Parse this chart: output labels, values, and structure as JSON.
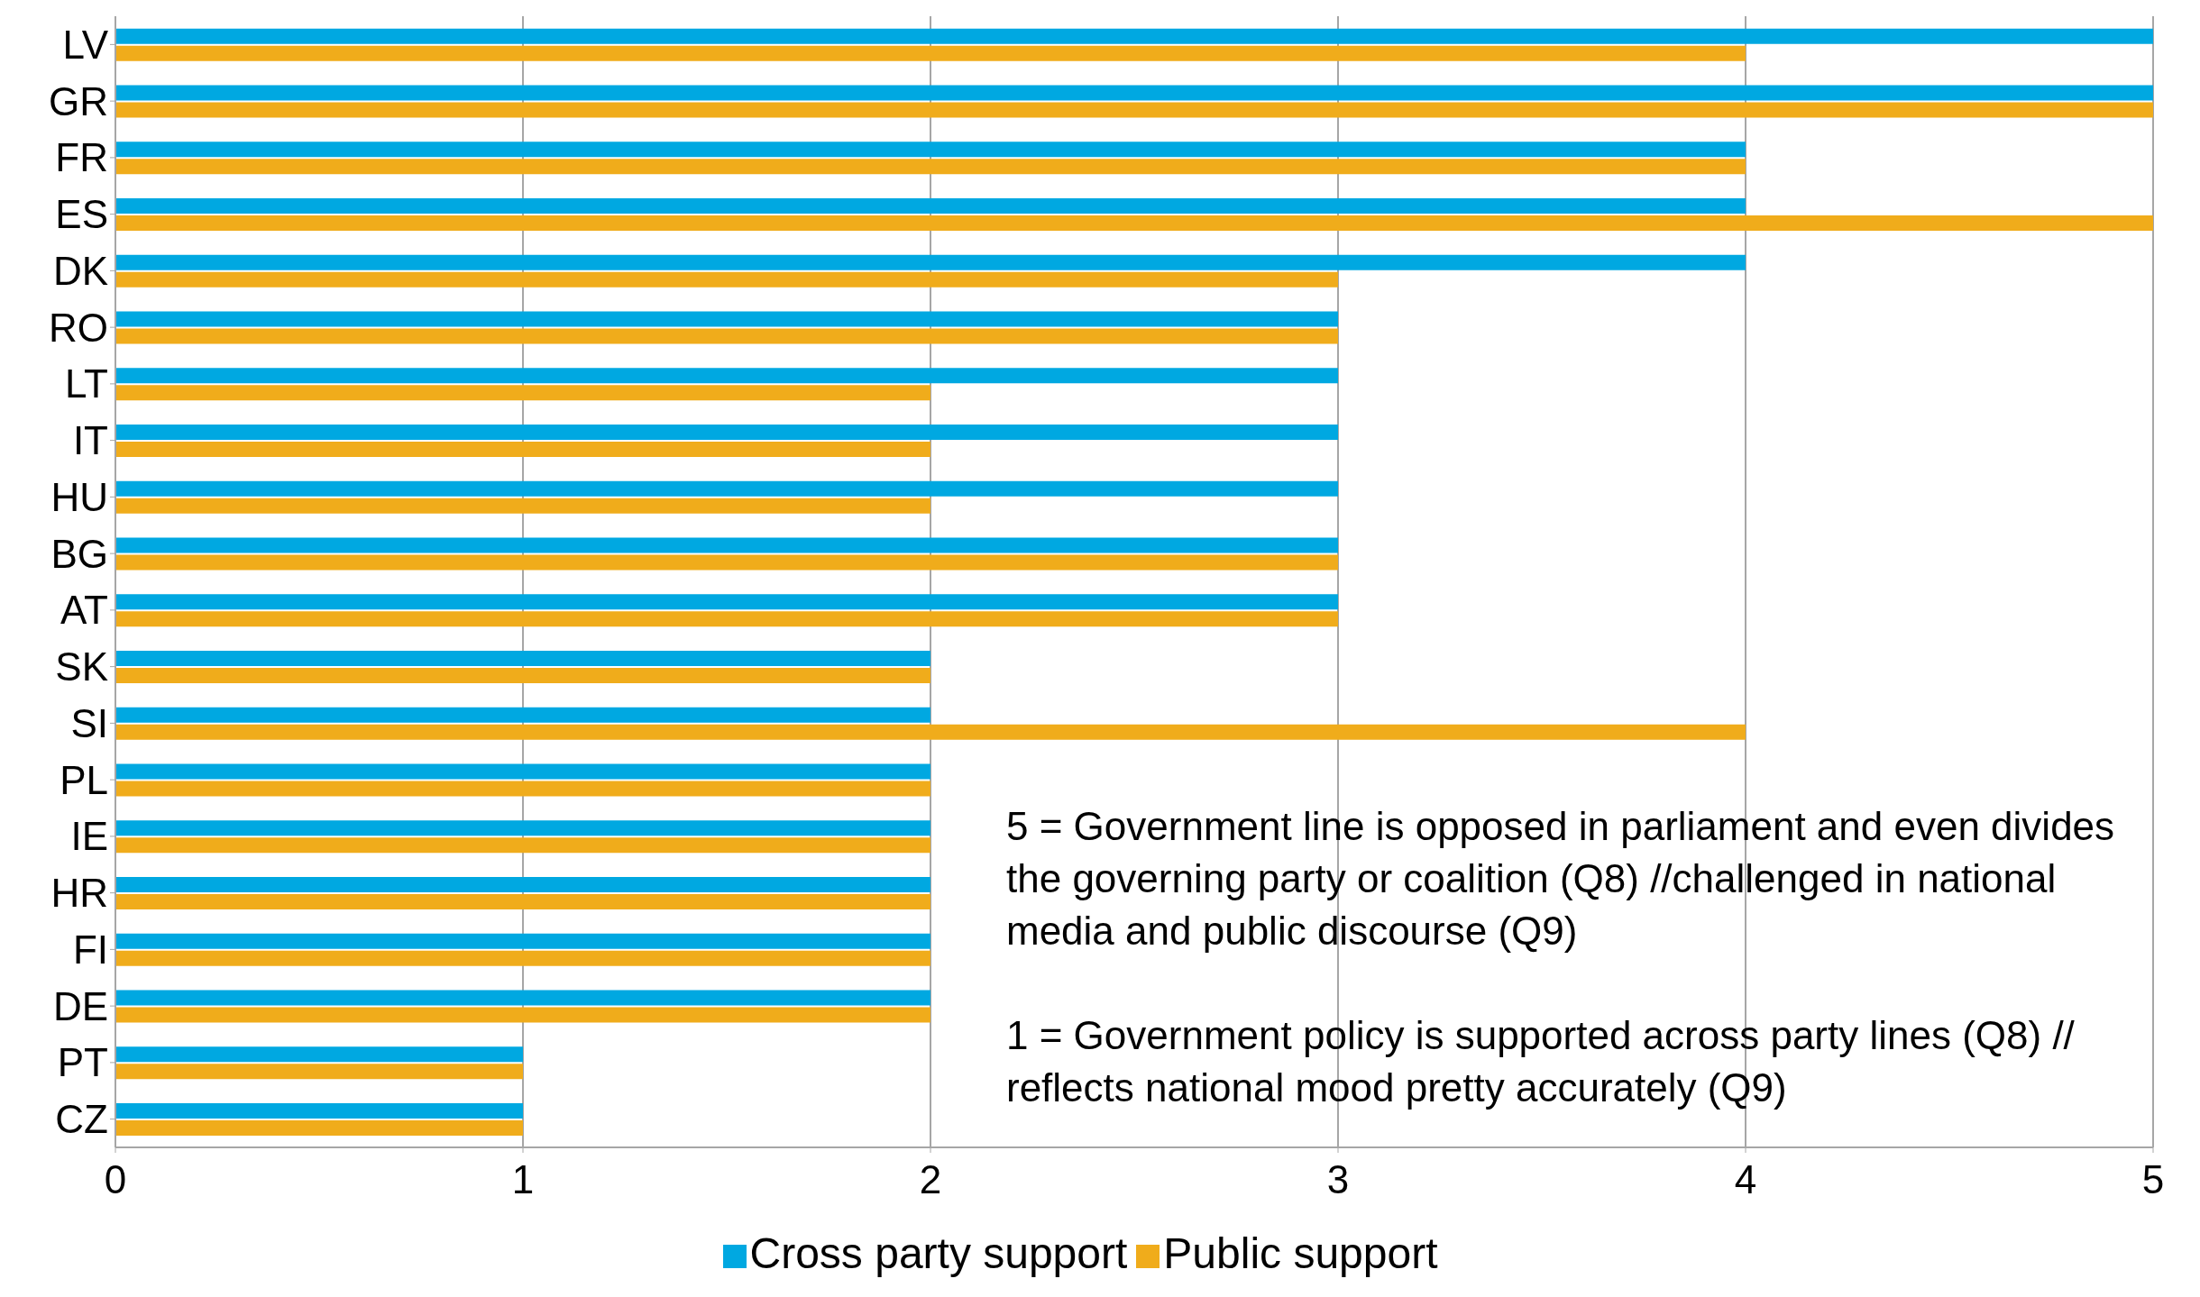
{
  "chart_data": {
    "type": "bar",
    "orientation": "horizontal",
    "categories": [
      "LV",
      "GR",
      "FR",
      "ES",
      "DK",
      "RO",
      "LT",
      "IT",
      "HU",
      "BG",
      "AT",
      "SK",
      "SI",
      "PL",
      "IE",
      "HR",
      "FI",
      "DE",
      "PT",
      "CZ"
    ],
    "series": [
      {
        "name": "Cross party support",
        "color": "#00a8e1",
        "values": [
          5,
          5,
          4,
          4,
          4,
          3,
          3,
          3,
          3,
          3,
          3,
          2,
          2,
          2,
          2,
          2,
          2,
          2,
          1,
          1
        ]
      },
      {
        "name": "Public support",
        "color": "#f0ac1b",
        "values": [
          4,
          5,
          4,
          5,
          3,
          3,
          2,
          2,
          2,
          3,
          3,
          2,
          4,
          2,
          2,
          2,
          2,
          2,
          1,
          1
        ]
      }
    ],
    "xlim": [
      0,
      5
    ],
    "xticks": [
      0,
      1,
      2,
      3,
      4,
      5
    ],
    "grid": "x",
    "legend": "bottom",
    "annotations": [
      "5 = Government line is opposed in parliament and even divides the governing party or coalition (Q8) //challenged in national media and public discourse (Q9)",
      "1 = Government policy is supported across party lines (Q8) // reflects national mood pretty accurately (Q9)"
    ]
  }
}
